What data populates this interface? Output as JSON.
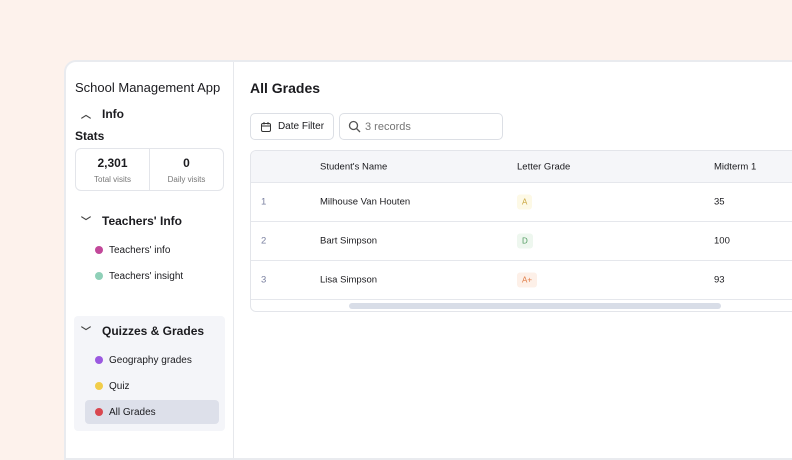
{
  "sidebar": {
    "app_title": "School Management App",
    "info": {
      "label": "Info",
      "stats_label": "Stats",
      "stats": [
        {
          "value": "2,301",
          "label": "Total visits"
        },
        {
          "value": "0",
          "label": "Daily visits"
        }
      ]
    },
    "teachers": {
      "label": "Teachers' Info",
      "items": [
        {
          "label": "Teachers' info",
          "color": "#c2489a"
        },
        {
          "label": "Teachers' insight",
          "color": "#8fd0b8"
        }
      ]
    },
    "quizzes": {
      "label": "Quizzes & Grades",
      "items": [
        {
          "label": "Geography grades",
          "color": "#9b59e0"
        },
        {
          "label": "Quiz",
          "color": "#f1cd4a"
        },
        {
          "label": "All Grades",
          "color": "#d9474f",
          "active": true
        }
      ]
    }
  },
  "main": {
    "title": "All Grades",
    "date_filter": "Date Filter",
    "search_placeholder": "3 records",
    "table": {
      "columns": [
        "Student's Name",
        "Letter Grade",
        "Midterm 1"
      ],
      "rows": [
        {
          "n": "1",
          "name": "Milhouse Van Houten",
          "grade": "A",
          "midterm": "35",
          "bg": "#fdf9e6",
          "fg": "#c9a43a"
        },
        {
          "n": "2",
          "name": "Bart Simpson",
          "grade": "D",
          "midterm": "100",
          "bg": "#eef7ef",
          "fg": "#4f9a5e"
        },
        {
          "n": "3",
          "name": "Lisa Simpson",
          "grade": "A+",
          "midterm": "93",
          "bg": "#fdf0e8",
          "fg": "#e07a43"
        }
      ]
    }
  }
}
